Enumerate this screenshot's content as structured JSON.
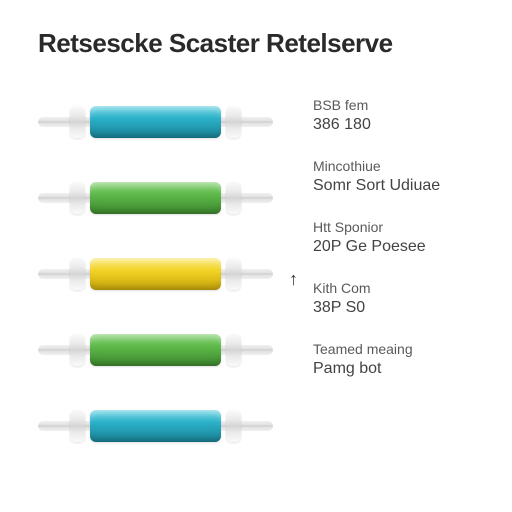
{
  "title": "Retsescke Scaster Retelserve",
  "tubes": [
    {
      "color": "#2ab0c8",
      "highlight": "#6dd4e3",
      "shadow": "#1a8498"
    },
    {
      "color": "#5cb848",
      "highlight": "#8dd47c",
      "shadow": "#3f8a30"
    },
    {
      "color": "#f2d224",
      "highlight": "#f9e878",
      "shadow": "#c9a80c"
    },
    {
      "color": "#5cb848",
      "highlight": "#8dd47c",
      "shadow": "#3f8a30"
    },
    {
      "color": "#2ab0c8",
      "highlight": "#6dd4e3",
      "shadow": "#1a8498"
    }
  ],
  "specs": [
    {
      "label": "BSB fem",
      "value": "386 180"
    },
    {
      "label": "Mincothiue",
      "value": "Somr Sort Udiuae"
    },
    {
      "label": "Htt Sponior",
      "value": "20P Ge Poesee"
    },
    {
      "label": "Kith Com",
      "value": "38P S0"
    },
    {
      "label": "Teamed meaing",
      "value": "Pamg bot"
    }
  ],
  "arrow_glyph": "↑",
  "rod_bg": "linear-gradient(180deg,#f0f0f0 0%,#e4e4e4 35%,#cfcfcf 50%,#e4e4e4 65%,#f0f0f0 100%)"
}
